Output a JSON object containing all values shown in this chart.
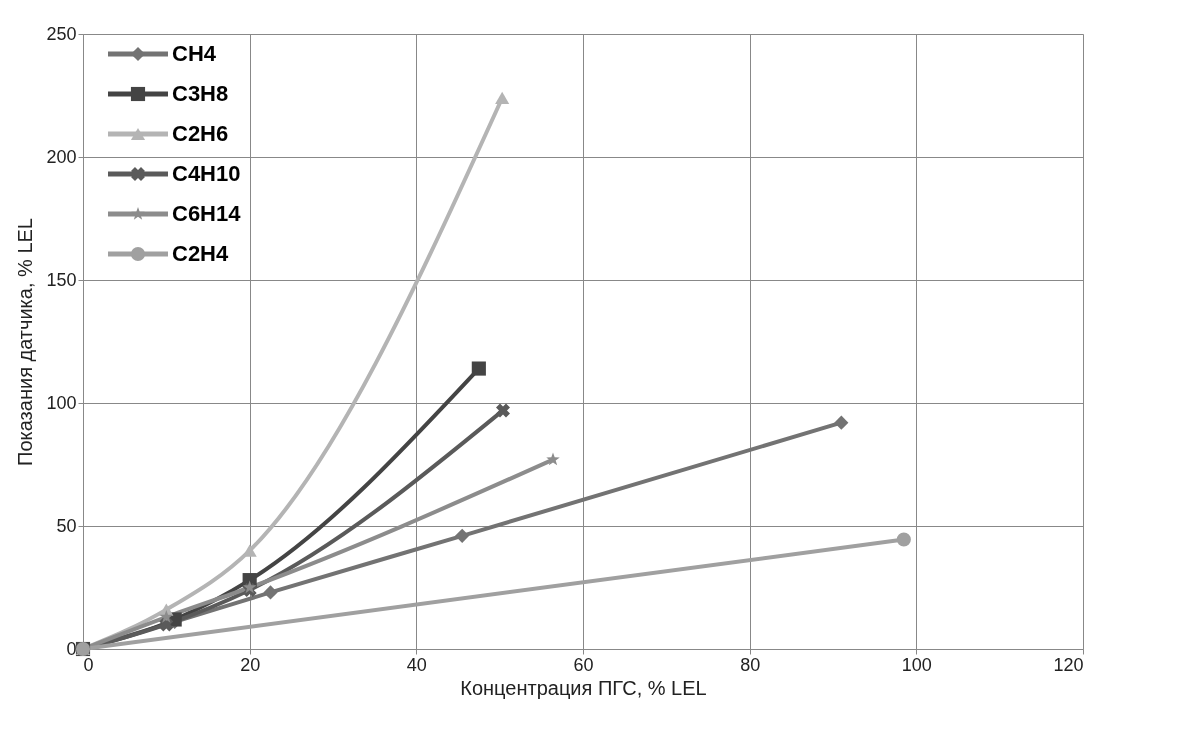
{
  "chart_data": {
    "type": "line",
    "xlabel": "Концентрация ПГС, % LEL",
    "ylabel": "Показания датчика, % LEL",
    "xlim": [
      0,
      120
    ],
    "xticks": [
      0,
      20,
      40,
      60,
      80,
      100,
      120
    ],
    "ylim": [
      0,
      250
    ],
    "yticks": [
      0,
      50,
      100,
      150,
      200,
      250
    ],
    "grid": true,
    "legend": "top left",
    "series": [
      {
        "name": "CH4",
        "color": "#737373",
        "marker": "diamond",
        "x": [
          0,
          11,
          22.5,
          45.5,
          91
        ],
        "values": [
          0,
          11,
          23,
          46,
          92
        ]
      },
      {
        "name": "C3H8",
        "color": "#444444",
        "marker": "square",
        "x": [
          0,
          11,
          20,
          47.5
        ],
        "values": [
          0,
          12,
          28,
          114
        ]
      },
      {
        "name": "C2H6",
        "color": "#b4b4b4",
        "marker": "triangle",
        "x": [
          0,
          10,
          20,
          50.3
        ],
        "values": [
          0,
          16,
          40,
          224
        ]
      },
      {
        "name": "C4H10",
        "color": "#5a5a5a",
        "marker": "cross",
        "x": [
          0,
          10,
          20,
          50.4
        ],
        "values": [
          0,
          10,
          24,
          97
        ]
      },
      {
        "name": "C6H14",
        "color": "#8c8c8c",
        "marker": "star",
        "x": [
          0,
          10,
          20,
          56.4
        ],
        "values": [
          0,
          13,
          25,
          77
        ]
      },
      {
        "name": "C2H4",
        "color": "#a0a0a0",
        "marker": "circle",
        "x": [
          0,
          98.5
        ],
        "values": [
          0,
          44.5
        ]
      }
    ]
  }
}
